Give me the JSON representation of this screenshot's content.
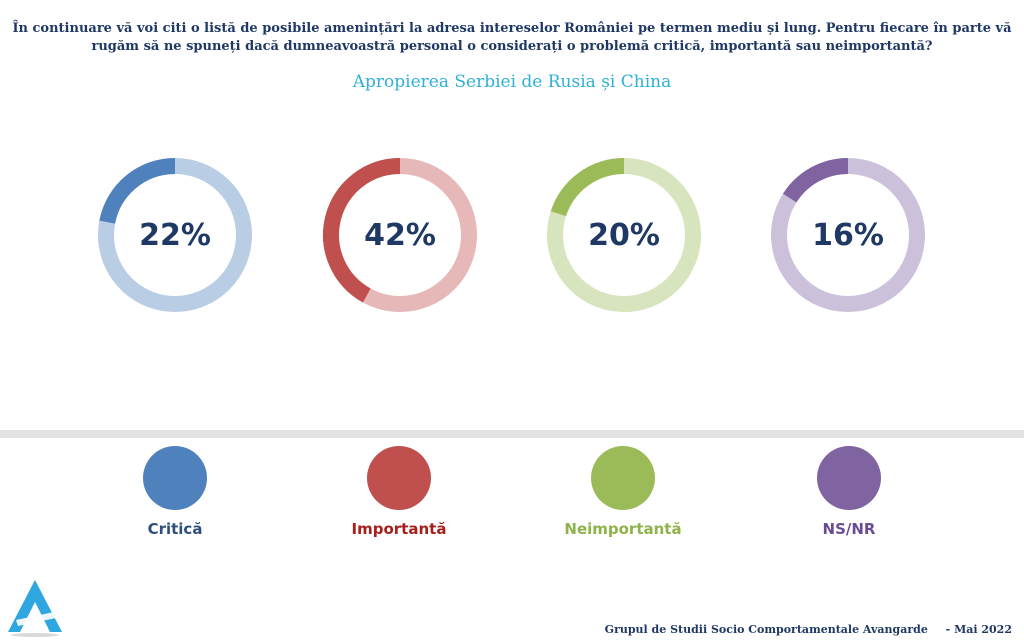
{
  "question": "În continuare vă voi citi o listă de posibile amenințări la adresa intereselor României pe termen mediu și lung. Pentru fiecare în parte vă rugăm să ne spuneți dacă dumneavoastră personal o considerați o problemă critică, importantă sau neimportantă?",
  "subtitle": "Apropierea Serbiei de Rusia și China",
  "chart_data": {
    "type": "pie",
    "title": "Apropierea Serbiei de Rusia și China",
    "series": [
      {
        "name": "Critică",
        "value": 22,
        "label": "22%",
        "color": "#4f81bd",
        "track_color": "#b9cde5"
      },
      {
        "name": "Importantă",
        "value": 42,
        "label": "42%",
        "color": "#c0504d",
        "track_color": "#e6b9b8"
      },
      {
        "name": "Neimportantă",
        "value": 20,
        "label": "20%",
        "color": "#9bbb59",
        "track_color": "#d7e4bd"
      },
      {
        "name": "NS/NR",
        "value": 16,
        "label": "16%",
        "color": "#8064a2",
        "track_color": "#ccc1da"
      }
    ]
  },
  "legend": [
    {
      "label": "Critică",
      "dot_color": "#4f81bd",
      "text_color": "#2e4e7e"
    },
    {
      "label": "Importantă",
      "dot_color": "#c0504d",
      "text_color": "#a5201b"
    },
    {
      "label": "Neimportantă",
      "dot_color": "#9bbb59",
      "text_color": "#8fb34a"
    },
    {
      "label": "NS/NR",
      "dot_color": "#8064a2",
      "text_color": "#6a4c94"
    }
  ],
  "footer": {
    "organization": "Grupul de Studii Socio Comportamentale Avangarde",
    "date": "- Mai 2022"
  },
  "logo": {
    "icon": "avangarde-logo-icon",
    "color": "#2ea7e0"
  }
}
